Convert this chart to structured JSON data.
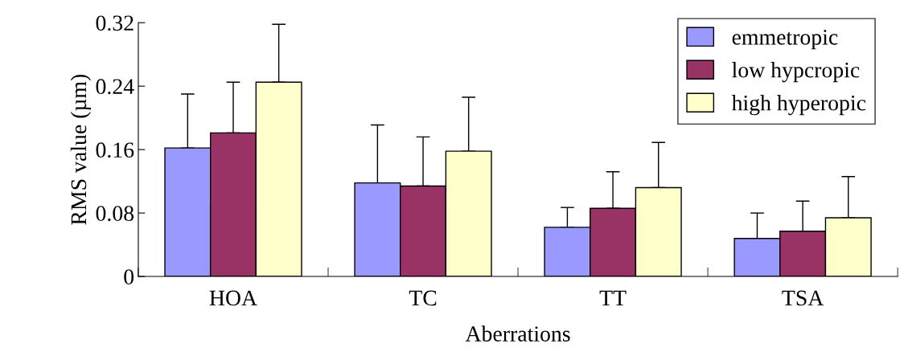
{
  "chart_data": {
    "type": "bar",
    "xlabel": "Aberrations",
    "ylabel": "RMS value (µm)",
    "categories": [
      "HOA",
      "TC",
      "TT",
      "TSA"
    ],
    "series": [
      {
        "name": "emmetropic",
        "color": "#9999ff",
        "values": [
          0.162,
          0.118,
          0.062,
          0.048
        ],
        "errors": [
          [
            0.162,
            0.23
          ],
          [
            0.118,
            0.191
          ],
          [
            0.062,
            0.087
          ],
          [
            0.048,
            0.08
          ]
        ]
      },
      {
        "name": "low hypcropic",
        "color": "#993366",
        "values": [
          0.181,
          0.114,
          0.086,
          0.057
        ],
        "errors": [
          [
            0.181,
            0.245
          ],
          [
            0.114,
            0.176
          ],
          [
            0.086,
            0.132
          ],
          [
            0.057,
            0.095
          ]
        ]
      },
      {
        "name": "high hyperopic",
        "color": "#ffffcc",
        "values": [
          0.245,
          0.158,
          0.112,
          0.074
        ],
        "errors": [
          [
            0.245,
            0.318
          ],
          [
            0.158,
            0.226
          ],
          [
            0.112,
            0.169
          ],
          [
            0.074,
            0.126
          ]
        ]
      }
    ],
    "ylim": [
      0,
      0.32
    ],
    "yticks": [
      {
        "value": 0,
        "label": "0"
      },
      0.08,
      0.16,
      0.24,
      0.32
    ],
    "grid": false,
    "legend": "top right"
  }
}
